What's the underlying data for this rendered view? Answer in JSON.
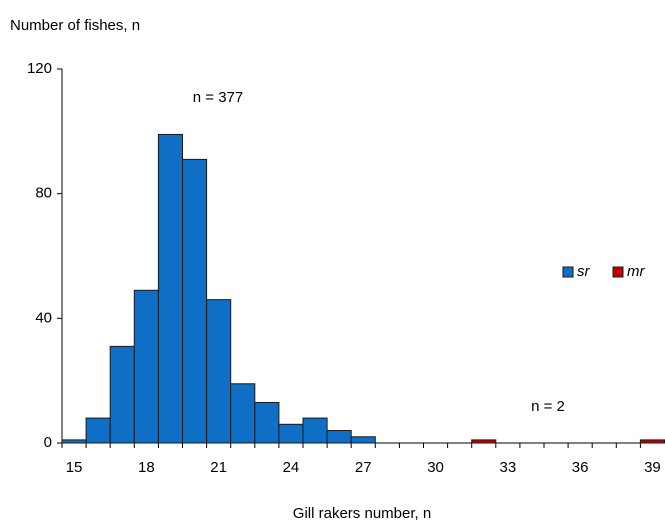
{
  "chart_data": {
    "type": "bar",
    "y_label": "Number of fishes, n",
    "x_label": "Gill rakers number, n",
    "categories": [
      "15",
      null,
      null,
      "18",
      null,
      null,
      "21",
      null,
      null,
      "24",
      null,
      null,
      "27",
      null,
      null,
      "30",
      null,
      null,
      "33",
      null,
      null,
      "36",
      null,
      null,
      "39"
    ],
    "series": [
      {
        "name": "sr",
        "color": "#0f6fc6",
        "values": [
          1,
          8,
          31,
          49,
          99,
          91,
          46,
          19,
          13,
          6,
          8,
          4,
          2,
          0,
          0,
          0,
          0,
          0,
          0,
          0,
          0,
          0,
          0,
          0,
          0
        ]
      },
      {
        "name": "mr",
        "color": "#c00000",
        "values": [
          0,
          0,
          0,
          0,
          0,
          0,
          0,
          0,
          0,
          0,
          0,
          0,
          0,
          0,
          0,
          0,
          0,
          1,
          0,
          0,
          0,
          0,
          0,
          0,
          1
        ]
      }
    ],
    "annotations": [
      "n = 377",
      "n = 2"
    ],
    "ylim": [
      0,
      120
    ],
    "yticks": [
      0,
      40,
      80,
      120
    ]
  }
}
